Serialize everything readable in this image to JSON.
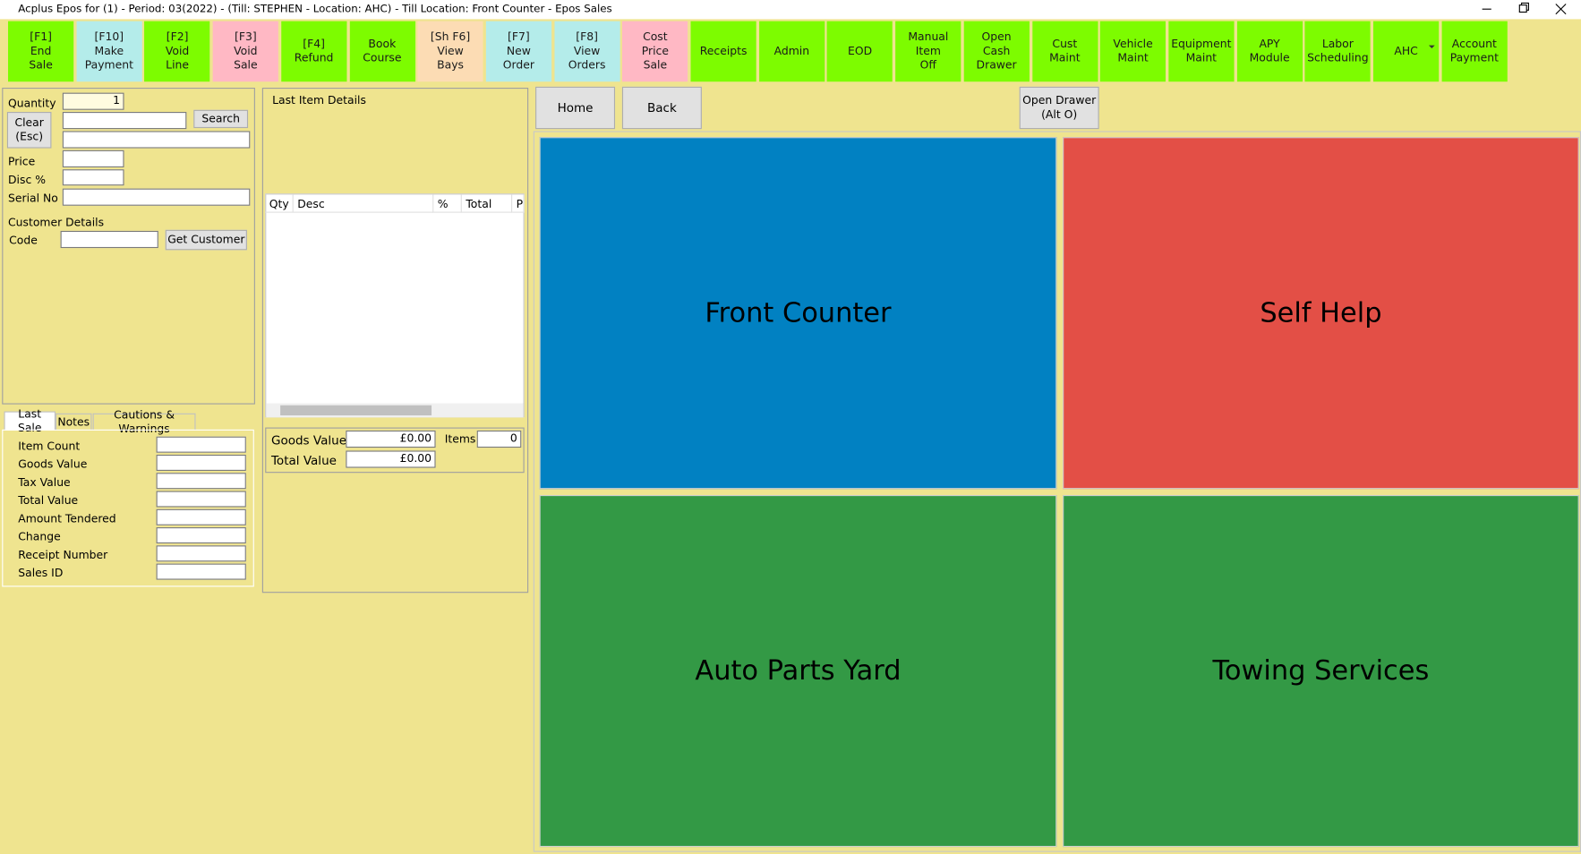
{
  "window": {
    "title": "Acplus Epos for  (1) - Period: 03(2022) - (Till: STEPHEN - Location: AHC) - Till Location: Front Counter - Epos Sales"
  },
  "toolbar": [
    {
      "label": "[F1]\nEnd\nSale",
      "color": "#7dfc00"
    },
    {
      "label": "[F10]\nMake\nPayment",
      "color": "#b4ecea"
    },
    {
      "label": "[F2]\nVoid\nLine",
      "color": "#7dfc00"
    },
    {
      "label": "[F3]\nVoid\nSale",
      "color": "#ffb8c4"
    },
    {
      "label": "[F4]\nRefund",
      "color": "#7dfc00"
    },
    {
      "label": "Book\nCourse",
      "color": "#7dfc00"
    },
    {
      "label": "[Sh F6]\nView\nBays",
      "color": "#fcdcb4"
    },
    {
      "label": "[F7]\nNew\nOrder",
      "color": "#b4ecea"
    },
    {
      "label": "[F8]\nView\nOrders",
      "color": "#b4ecea"
    },
    {
      "label": "Cost\nPrice\nSale",
      "color": "#ffb8c4"
    },
    {
      "label": "Receipts",
      "color": "#7dfc00"
    },
    {
      "label": "Admin",
      "color": "#7dfc00"
    },
    {
      "label": "EOD",
      "color": "#7dfc00"
    },
    {
      "label": "Manual\nItem\nOff",
      "color": "#7dfc00"
    },
    {
      "label": "Open\nCash\nDrawer",
      "color": "#7dfc00"
    },
    {
      "label": "Cust\nMaint",
      "color": "#7dfc00"
    },
    {
      "label": "Vehicle\nMaint",
      "color": "#7dfc00"
    },
    {
      "label": "Equipment\nMaint",
      "color": "#7dfc00"
    },
    {
      "label": "APY\nModule",
      "color": "#7dfc00"
    },
    {
      "label": "Labor\nScheduling",
      "color": "#7dfc00"
    },
    {
      "label": "AHC",
      "color": "#7dfc00"
    },
    {
      "label": "Account\nPayment",
      "color": "#7dfc00"
    }
  ],
  "sale_panel": {
    "quantity_label": "Quantity",
    "quantity_value": "1",
    "clear_button": "Clear\n(Esc)",
    "search_button": "Search",
    "price_label": "Price",
    "disc_label": "Disc %",
    "serial_label": "Serial No",
    "customer_heading": "Customer Details",
    "code_label": "Code",
    "get_customer_button": "Get Customer"
  },
  "tabs": [
    "Last Sale",
    "Notes",
    "Cautions & Warnings"
  ],
  "last_sale_fields": [
    "Item Count",
    "Goods Value",
    "Tax Value",
    "Total Value",
    "Amount Tendered",
    "Change",
    "Receipt Number",
    "Sales ID"
  ],
  "item_panel": {
    "heading": "Last Item Details",
    "columns": [
      "Qty",
      "Desc",
      "%",
      "Total",
      "P"
    ],
    "goods_value_label": "Goods Value",
    "goods_value": "£0.00",
    "items_label": "Items",
    "items": 0,
    "total_value_label": "Total Value",
    "total_value": "£0.00"
  },
  "nav": {
    "home": "Home",
    "back": "Back",
    "open_drawer": "Open Drawer\n(Alt O)"
  },
  "tiles": [
    {
      "label": "Front Counter",
      "color": "#0181c2"
    },
    {
      "label": "Self Help",
      "color": "#e34f46"
    },
    {
      "label": "Auto Parts Yard",
      "color": "#339945"
    },
    {
      "label": "Towing Services",
      "color": "#339945"
    }
  ]
}
